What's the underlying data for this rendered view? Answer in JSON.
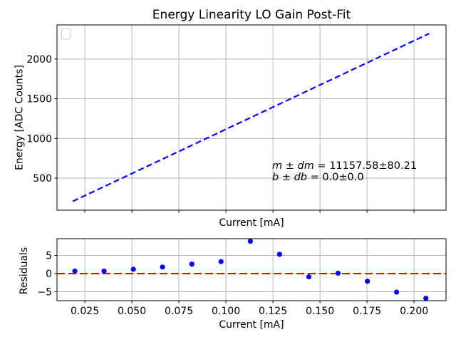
{
  "figure": {
    "title": "Energy Linearity LO Gain Post-Fit"
  },
  "chart_data": [
    {
      "type": "line",
      "title": "Energy Linearity LO Gain Post-Fit",
      "xlabel": "Current [mA]",
      "ylabel": "Energy [ADC Counts]",
      "xlim": [
        0.0102,
        0.217
      ],
      "ylim": [
        96,
        2430
      ],
      "grid": true,
      "legend": {
        "present": true,
        "entries": [],
        "position": "upper left"
      },
      "xticks": [
        0.025,
        0.05,
        0.075,
        0.1,
        0.125,
        0.15,
        0.175,
        0.2
      ],
      "xticklabels": [],
      "yticks": [
        500,
        1000,
        1500,
        2000
      ],
      "yticklabels": [
        "500",
        "1000",
        "1500",
        "2000"
      ],
      "fit": {
        "slope": 11157.58,
        "slope_err": 80.21,
        "intercept": 0.0,
        "intercept_err": 0.0,
        "x_start": 0.0186,
        "x_end": 0.208,
        "line_style": "dashed",
        "color": "#0000ff"
      },
      "annotation": {
        "line1_math": "m ± dm",
        "line1_rest": " = 11157.58±80.21",
        "line2_math": "b ± db",
        "line2_rest": " = 0.0±0.0"
      }
    },
    {
      "type": "scatter",
      "title": "",
      "xlabel": "Current [mA]",
      "ylabel": "Residuals",
      "xlim": [
        0.0102,
        0.217
      ],
      "ylim": [
        -7.45,
        9.6
      ],
      "grid": true,
      "xticks": [
        0.025,
        0.05,
        0.075,
        0.1,
        0.125,
        0.15,
        0.175,
        0.2
      ],
      "xticklabels": [
        "0.025",
        "0.050",
        "0.075",
        "0.100",
        "0.125",
        "0.150",
        "0.175",
        "0.200"
      ],
      "yticks": [
        -5,
        0,
        5
      ],
      "yticklabels": [
        "−5",
        "0",
        "5"
      ],
      "x": [
        0.0197,
        0.0352,
        0.0508,
        0.0663,
        0.0819,
        0.0974,
        0.113,
        0.1285,
        0.1441,
        0.1596,
        0.1752,
        0.1907,
        0.2063
      ],
      "y": [
        0.7,
        0.7,
        1.2,
        1.8,
        2.6,
        3.3,
        8.9,
        5.3,
        -0.9,
        0.1,
        -2.1,
        -5.1,
        -6.8
      ],
      "refline_y": 0,
      "refline_color": "#ff0000",
      "point_color": "#0000ff",
      "colors": {
        "grid": "#b0b0b0",
        "axis": "#000000",
        "fit_line": "#0000ff",
        "points": "#0000ff",
        "refline": "#ff0000",
        "legend_frame": "#cccccc"
      }
    }
  ]
}
